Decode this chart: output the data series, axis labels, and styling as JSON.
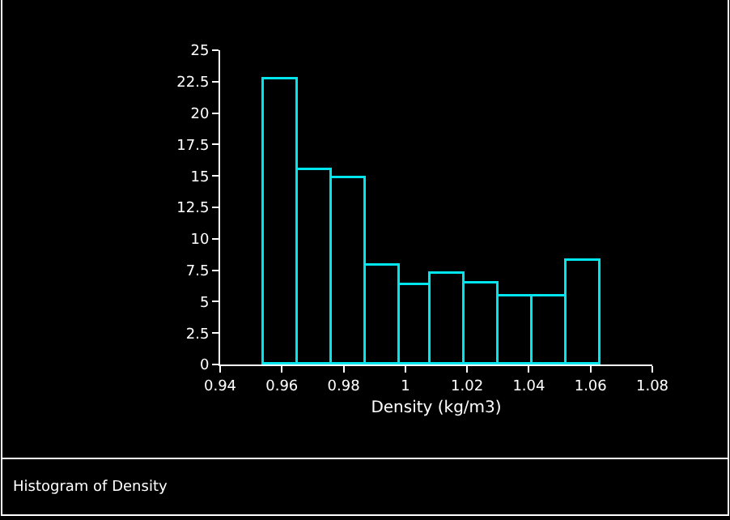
{
  "chart_data": {
    "type": "histogram",
    "title": "Histogram of Density",
    "xlabel": "Density (kg/m3)",
    "bins": [
      0.954,
      0.965,
      0.976,
      0.987,
      0.998,
      1.008,
      1.019,
      1.03,
      1.041,
      1.052,
      1.063
    ],
    "values": [
      22.7,
      15.5,
      14.8,
      7.8,
      6.3,
      7.2,
      6.4,
      5.4,
      5.4,
      8.2
    ],
    "color": "#00e5ee",
    "xlim": [
      0.94,
      1.08
    ],
    "xticks": [
      0.94,
      0.96,
      0.98,
      1,
      1.02,
      1.04,
      1.06,
      1.08
    ],
    "ylim": [
      0,
      25
    ],
    "yticks": [
      0,
      2.5,
      5,
      7.5,
      10,
      12.5,
      15,
      17.5,
      20,
      22.5,
      25
    ],
    "grid": false,
    "legend": false
  }
}
